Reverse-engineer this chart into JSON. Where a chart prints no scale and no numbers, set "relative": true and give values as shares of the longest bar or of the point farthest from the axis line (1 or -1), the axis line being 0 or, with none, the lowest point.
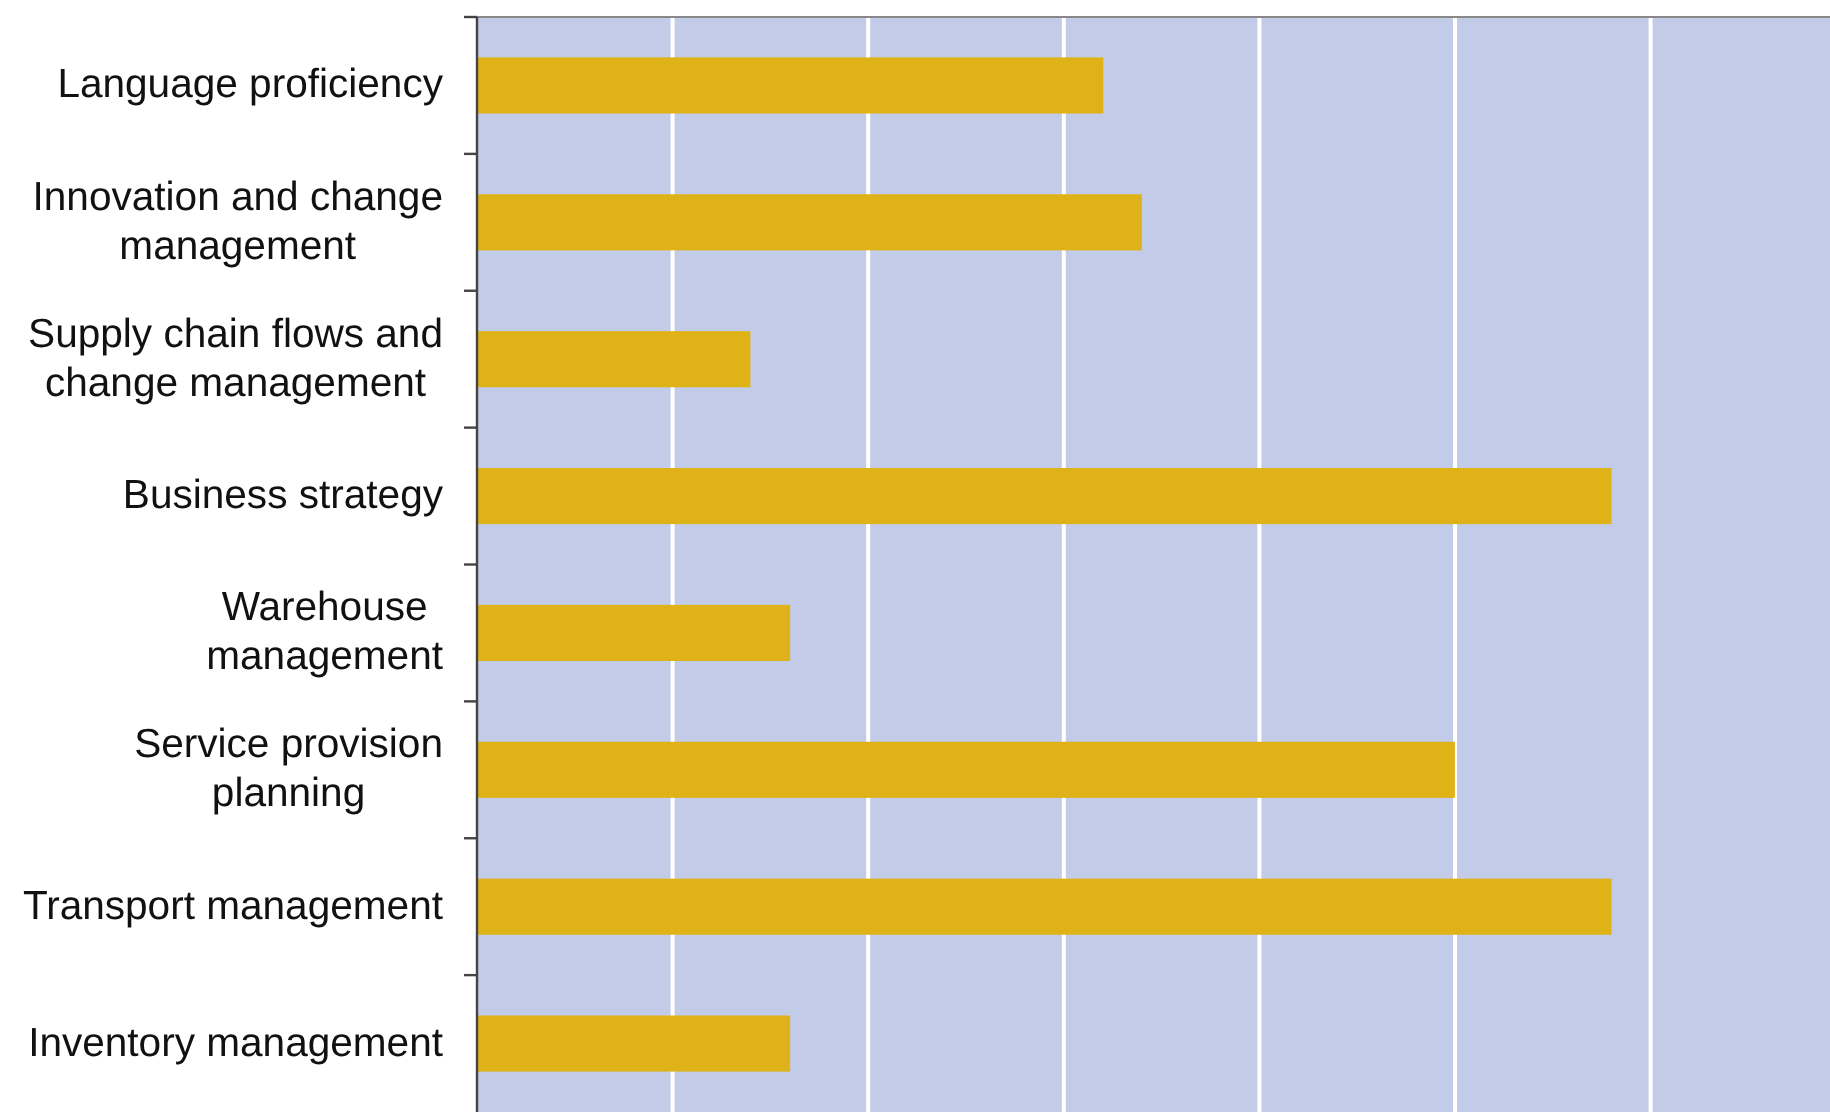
{
  "chart_data": {
    "type": "bar",
    "orientation": "horizontal",
    "relative": true,
    "categories": [
      "Language proficiency",
      "Innovation and change\nmanagement",
      "Supply chain flows and\nchange management",
      "Business strategy",
      "Warehouse\nmanagement",
      "Service provision\nplanning",
      "Transport management",
      "Inventory management"
    ],
    "values": [
      0.552,
      0.586,
      0.241,
      1,
      0.276,
      0.862,
      1,
      0.276
    ],
    "color": "#dfb318",
    "grid": "x"
  }
}
